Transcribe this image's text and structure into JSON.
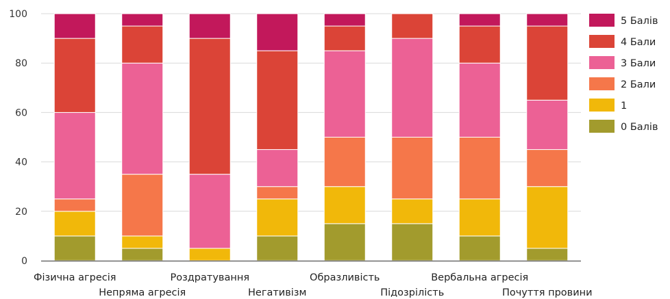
{
  "chart_data": {
    "type": "bar",
    "stacked": true,
    "categories": [
      "Фізична агресія",
      "Непряма агресія",
      "Роздратування",
      "Негативізм",
      "Образливість",
      "Підозрілість",
      "Вербальна агресія",
      "Почуття провини"
    ],
    "series": [
      {
        "name": "0 Балів",
        "color": "#a29b2d",
        "values": [
          10,
          5,
          0,
          10,
          15,
          15,
          10,
          5
        ]
      },
      {
        "name": "1",
        "color": "#f1b80a",
        "values": [
          10,
          5,
          5,
          15,
          15,
          10,
          15,
          25
        ]
      },
      {
        "name": "2 Бали",
        "color": "#f5774a",
        "values": [
          5,
          25,
          0,
          5,
          20,
          25,
          25,
          15
        ]
      },
      {
        "name": "3 Бали",
        "color": "#ec6195",
        "values": [
          35,
          45,
          30,
          15,
          35,
          40,
          30,
          20
        ]
      },
      {
        "name": "4 Бали",
        "color": "#db4437",
        "values": [
          30,
          15,
          55,
          40,
          10,
          10,
          15,
          30
        ]
      },
      {
        "name": "5 Балів",
        "color": "#c2185b",
        "values": [
          10,
          5,
          10,
          15,
          5,
          0,
          5,
          5
        ]
      }
    ],
    "ylim": [
      0,
      100
    ],
    "yticks": [
      0,
      20,
      40,
      60,
      80,
      100
    ],
    "grid": true,
    "legend": "right"
  }
}
